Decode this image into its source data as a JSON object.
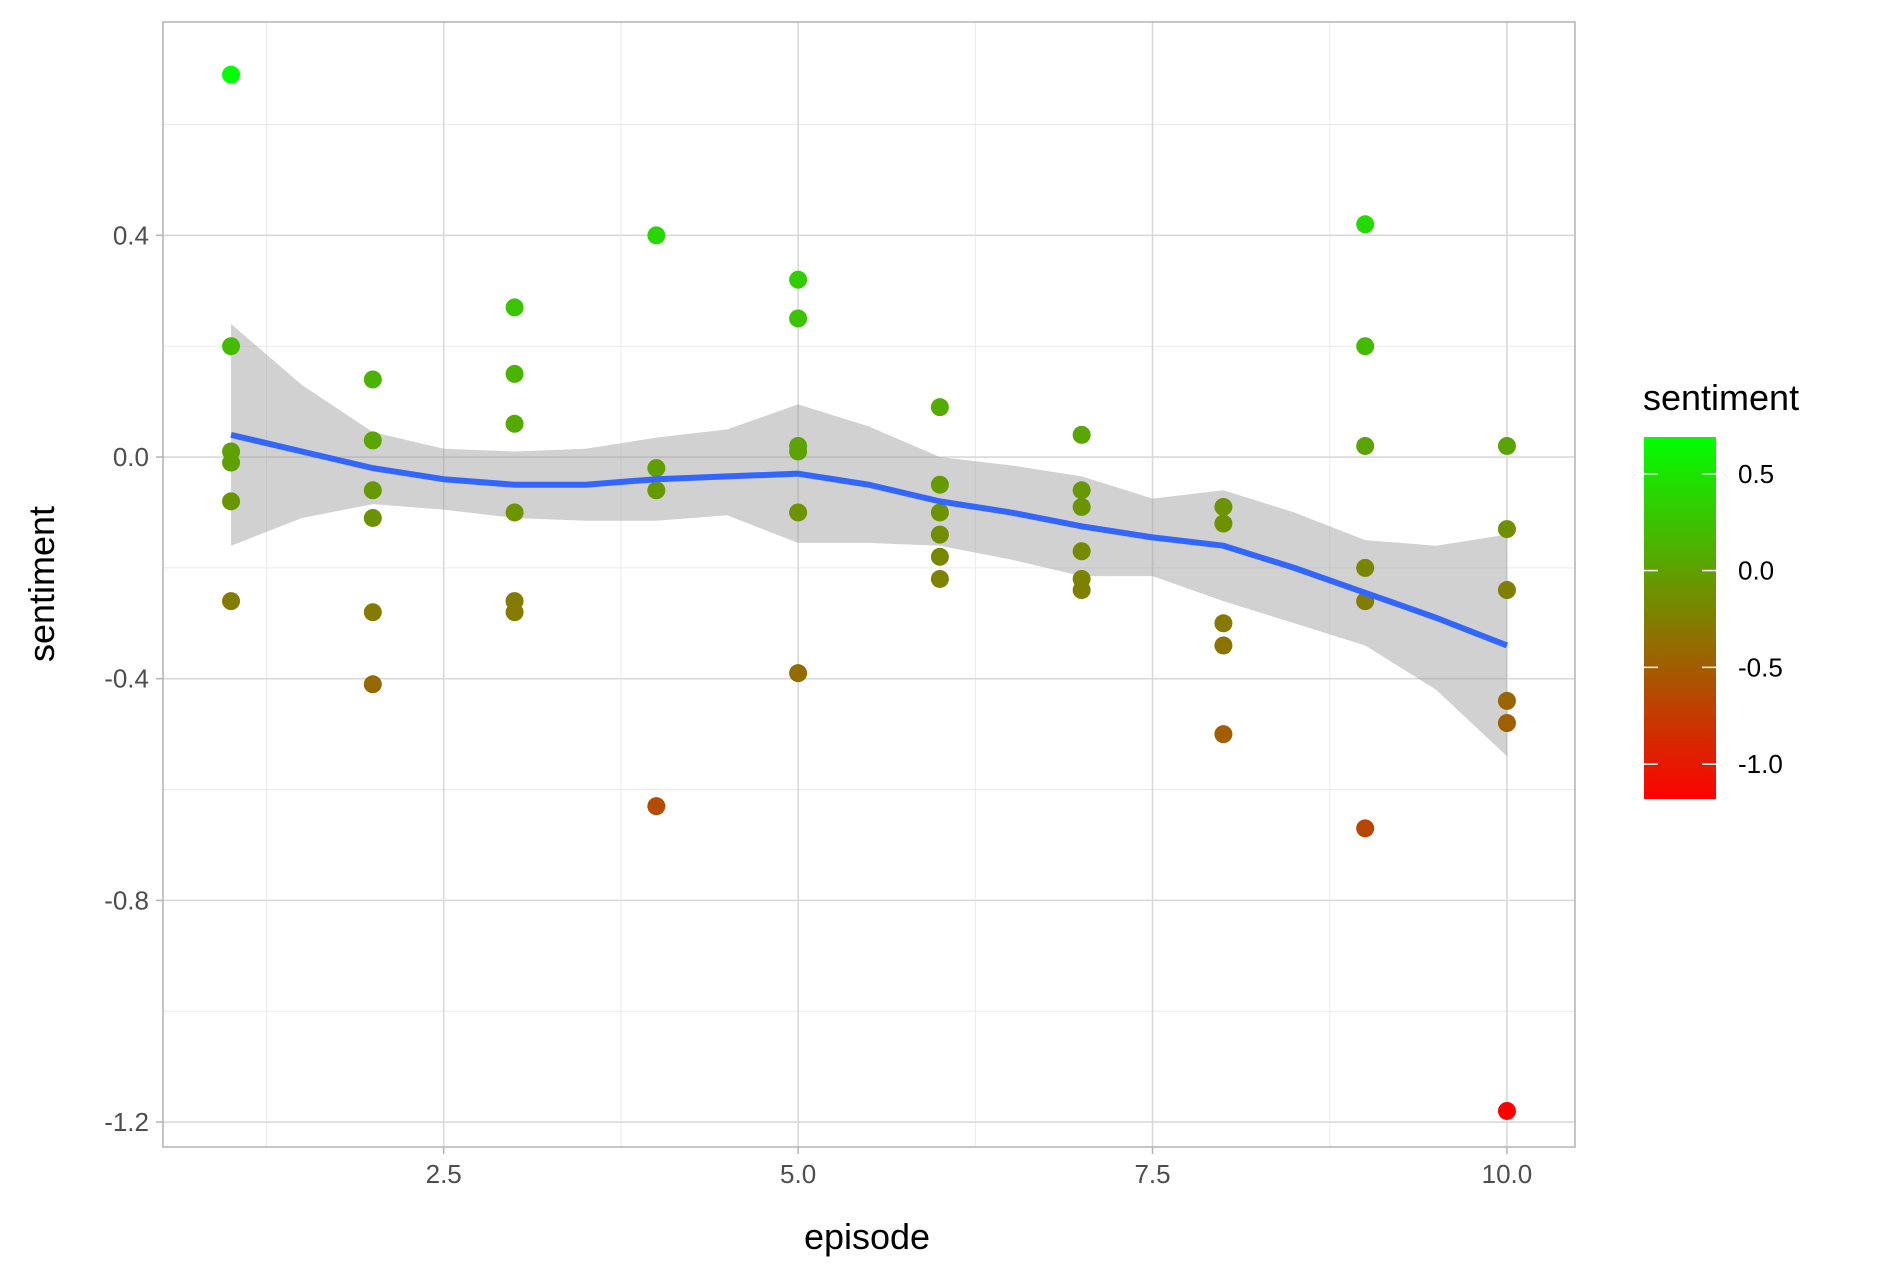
{
  "chart_data": {
    "type": "scatter",
    "xlabel": "episode",
    "ylabel": "sentiment",
    "xlim": [
      0.52,
      10.48
    ],
    "ylim": [
      -1.245,
      0.785
    ],
    "x_ticks": [
      2.5,
      5.0,
      7.5,
      10.0
    ],
    "x_tick_labels": [
      "2.5",
      "5.0",
      "7.5",
      "10.0"
    ],
    "y_ticks": [
      -1.2,
      -0.8,
      -0.4,
      0.0,
      0.4
    ],
    "y_tick_labels": [
      "-1.2",
      "-0.8",
      "-0.4",
      "0.0",
      "0.4"
    ],
    "grid": true,
    "color_scale": {
      "title": "sentiment",
      "low_color": "#ff0000",
      "high_color": "#00ff00",
      "limits": [
        -1.18,
        0.69
      ],
      "breaks": [
        0.5,
        0.0,
        -0.5,
        -1.0
      ],
      "break_labels": [
        "0.5",
        "0.0",
        "-0.5",
        "-1.0"
      ],
      "legend_position": "right"
    },
    "points": [
      {
        "x": 1,
        "y": 0.69
      },
      {
        "x": 1,
        "y": 0.2
      },
      {
        "x": 1,
        "y": 0.01
      },
      {
        "x": 1,
        "y": -0.01
      },
      {
        "x": 1,
        "y": -0.08
      },
      {
        "x": 1,
        "y": -0.26
      },
      {
        "x": 2,
        "y": 0.14
      },
      {
        "x": 2,
        "y": 0.03
      },
      {
        "x": 2,
        "y": -0.06
      },
      {
        "x": 2,
        "y": -0.11
      },
      {
        "x": 2,
        "y": -0.28
      },
      {
        "x": 2,
        "y": -0.41
      },
      {
        "x": 3,
        "y": 0.27
      },
      {
        "x": 3,
        "y": 0.15
      },
      {
        "x": 3,
        "y": 0.06
      },
      {
        "x": 3,
        "y": -0.1
      },
      {
        "x": 3,
        "y": -0.26
      },
      {
        "x": 3,
        "y": -0.28
      },
      {
        "x": 4,
        "y": 0.4
      },
      {
        "x": 4,
        "y": -0.02
      },
      {
        "x": 4,
        "y": -0.06
      },
      {
        "x": 4,
        "y": -0.63
      },
      {
        "x": 5,
        "y": 0.32
      },
      {
        "x": 5,
        "y": 0.25
      },
      {
        "x": 5,
        "y": 0.02
      },
      {
        "x": 5,
        "y": 0.01
      },
      {
        "x": 5,
        "y": -0.1
      },
      {
        "x": 5,
        "y": -0.39
      },
      {
        "x": 6,
        "y": 0.09
      },
      {
        "x": 6,
        "y": -0.05
      },
      {
        "x": 6,
        "y": -0.1
      },
      {
        "x": 6,
        "y": -0.14
      },
      {
        "x": 6,
        "y": -0.18
      },
      {
        "x": 6,
        "y": -0.22
      },
      {
        "x": 7,
        "y": 0.04
      },
      {
        "x": 7,
        "y": -0.06
      },
      {
        "x": 7,
        "y": -0.09
      },
      {
        "x": 7,
        "y": -0.17
      },
      {
        "x": 7,
        "y": -0.22
      },
      {
        "x": 7,
        "y": -0.24
      },
      {
        "x": 8,
        "y": -0.09
      },
      {
        "x": 8,
        "y": -0.12
      },
      {
        "x": 8,
        "y": -0.3
      },
      {
        "x": 8,
        "y": -0.34
      },
      {
        "x": 8,
        "y": -0.5
      },
      {
        "x": 9,
        "y": 0.42
      },
      {
        "x": 9,
        "y": 0.2
      },
      {
        "x": 9,
        "y": 0.02
      },
      {
        "x": 9,
        "y": -0.2
      },
      {
        "x": 9,
        "y": -0.26
      },
      {
        "x": 9,
        "y": -0.67
      },
      {
        "x": 10,
        "y": 0.02
      },
      {
        "x": 10,
        "y": -0.13
      },
      {
        "x": 10,
        "y": -0.24
      },
      {
        "x": 10,
        "y": -0.44
      },
      {
        "x": 10,
        "y": -0.48
      },
      {
        "x": 10,
        "y": -1.18
      }
    ],
    "smooth": {
      "color": "#3366ff",
      "band_color": "#999999",
      "x": [
        1.0,
        1.5,
        2.0,
        2.5,
        3.0,
        3.5,
        4.0,
        4.5,
        5.0,
        5.5,
        6.0,
        6.5,
        7.0,
        7.5,
        8.0,
        8.5,
        9.0,
        9.5,
        10.0
      ],
      "y": [
        0.04,
        0.01,
        -0.02,
        -0.04,
        -0.05,
        -0.05,
        -0.04,
        -0.035,
        -0.03,
        -0.05,
        -0.08,
        -0.1,
        -0.125,
        -0.145,
        -0.16,
        -0.2,
        -0.245,
        -0.29,
        -0.34
      ],
      "ymin": [
        -0.16,
        -0.11,
        -0.085,
        -0.095,
        -0.11,
        -0.115,
        -0.115,
        -0.105,
        -0.155,
        -0.155,
        -0.16,
        -0.185,
        -0.215,
        -0.215,
        -0.26,
        -0.3,
        -0.34,
        -0.42,
        -0.54
      ],
      "ymax": [
        0.24,
        0.13,
        0.045,
        0.015,
        0.01,
        0.015,
        0.035,
        0.05,
        0.095,
        0.055,
        0.0,
        -0.015,
        -0.035,
        -0.075,
        -0.06,
        -0.1,
        -0.15,
        -0.16,
        -0.14
      ]
    }
  }
}
